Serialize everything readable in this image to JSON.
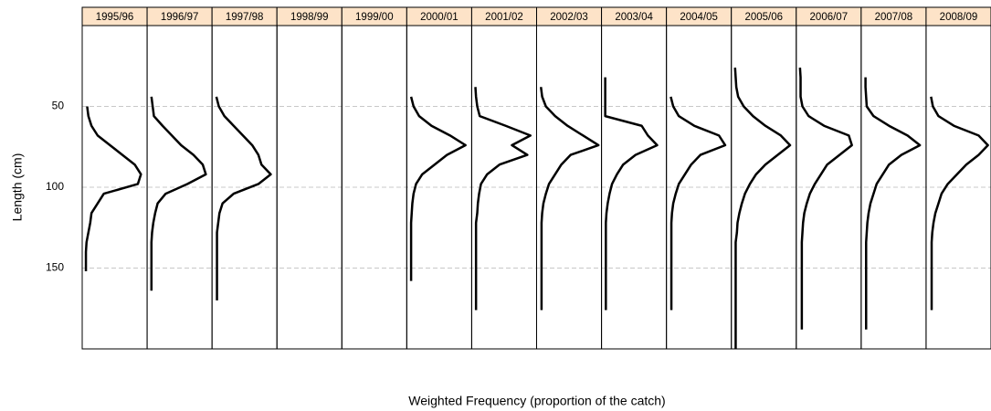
{
  "chart_data": {
    "type": "line",
    "ylabel": "Length (cm)",
    "xlabel": "Weighted Frequency (proportion of the catch)",
    "ylim": [
      0,
      200
    ],
    "y_inverted": true,
    "yticks": [
      50,
      100,
      150
    ],
    "grid": true,
    "xlim": [
      -0.005,
      0.1
    ],
    "color": "#000000",
    "strip_color": "#fde3c8",
    "lengths": [
      26,
      32,
      38,
      44,
      50,
      56,
      62,
      68,
      74,
      80,
      86,
      92,
      98,
      104,
      110,
      116,
      122,
      128,
      134,
      140,
      146,
      152,
      158,
      164,
      170,
      176,
      182,
      188,
      194,
      200
    ],
    "panels": [
      {
        "name": "1995/96",
        "values": [
          null,
          null,
          null,
          null,
          0.003,
          0.005,
          0.01,
          0.02,
          0.04,
          0.06,
          0.08,
          0.09,
          0.085,
          0.03,
          0.02,
          0.01,
          0.008,
          0.005,
          0.002,
          0.001,
          0.001,
          0.001,
          null,
          null,
          null,
          null,
          null,
          null,
          null,
          null
        ]
      },
      {
        "name": "1996/97",
        "values": [
          null,
          null,
          null,
          0.002,
          0.004,
          0.006,
          0.02,
          0.035,
          0.05,
          0.07,
          0.085,
          0.09,
          0.06,
          0.025,
          0.012,
          0.008,
          0.005,
          0.003,
          0.002,
          0.002,
          0.002,
          0.002,
          0.002,
          0.002,
          null,
          null,
          null,
          null,
          null,
          null
        ]
      },
      {
        "name": "1997/98",
        "values": [
          null,
          null,
          null,
          0.002,
          0.006,
          0.015,
          0.03,
          0.045,
          0.06,
          0.07,
          0.075,
          0.09,
          0.07,
          0.03,
          0.012,
          0.007,
          0.005,
          0.003,
          0.003,
          0.003,
          0.003,
          0.003,
          0.003,
          0.003,
          0.003,
          null,
          null,
          null,
          null,
          null
        ]
      },
      {
        "name": "1998/99",
        "values": [
          null,
          null,
          null,
          null,
          null,
          null,
          null,
          null,
          null,
          null,
          null,
          null,
          null,
          null,
          null,
          null,
          null,
          null,
          null,
          null,
          null,
          null,
          null,
          null,
          null,
          null,
          null,
          null,
          null,
          null
        ]
      },
      {
        "name": "1999/00",
        "values": [
          null,
          null,
          null,
          null,
          null,
          null,
          null,
          null,
          null,
          null,
          null,
          null,
          null,
          null,
          null,
          null,
          null,
          null,
          null,
          null,
          null,
          null,
          null,
          null,
          null,
          null,
          null,
          null,
          null,
          null
        ]
      },
      {
        "name": "2000/01",
        "values": [
          null,
          null,
          null,
          0.002,
          0.006,
          0.015,
          0.035,
          0.065,
          0.09,
          0.06,
          0.04,
          0.02,
          0.01,
          0.006,
          0.004,
          0.003,
          0.002,
          0.002,
          0.002,
          0.002,
          0.002,
          0.002,
          0.002,
          null,
          null,
          null,
          null,
          null,
          null,
          null
        ]
      },
      {
        "name": "2001/02",
        "values": [
          null,
          null,
          0.001,
          0.002,
          0.004,
          0.008,
          0.05,
          0.09,
          0.06,
          0.085,
          0.04,
          0.02,
          0.01,
          0.007,
          0.005,
          0.004,
          0.002,
          0.002,
          0.002,
          0.002,
          0.002,
          0.002,
          0.002,
          0.002,
          0.002,
          0.002,
          null,
          null,
          null,
          null
        ]
      },
      {
        "name": "2002/03",
        "values": [
          null,
          null,
          0.002,
          0.004,
          0.01,
          0.025,
          0.045,
          0.07,
          0.095,
          0.05,
          0.035,
          0.025,
          0.015,
          0.01,
          0.006,
          0.004,
          0.003,
          0.003,
          0.003,
          0.003,
          0.003,
          0.003,
          0.003,
          0.003,
          0.003,
          0.003,
          null,
          null,
          null,
          null
        ]
      },
      {
        "name": "2003/04",
        "values": [
          null,
          0.001,
          0.001,
          0.001,
          0.001,
          0.001,
          0.06,
          0.07,
          0.085,
          0.05,
          0.03,
          0.02,
          0.012,
          0.008,
          0.005,
          0.003,
          0.002,
          0.002,
          0.002,
          0.002,
          0.002,
          0.002,
          0.002,
          0.002,
          0.002,
          0.002,
          null,
          null,
          null,
          null
        ]
      },
      {
        "name": "2004/05",
        "values": [
          null,
          null,
          null,
          0.002,
          0.006,
          0.015,
          0.04,
          0.08,
          0.09,
          0.05,
          0.035,
          0.025,
          0.015,
          0.01,
          0.006,
          0.004,
          0.003,
          0.003,
          0.003,
          0.003,
          0.003,
          0.003,
          0.003,
          0.003,
          0.003,
          0.003,
          null,
          null,
          null,
          null
        ]
      },
      {
        "name": "2005/06",
        "values": [
          0.001,
          0.002,
          0.003,
          0.006,
          0.015,
          0.03,
          0.05,
          0.075,
          0.09,
          0.07,
          0.05,
          0.035,
          0.025,
          0.017,
          0.012,
          0.008,
          0.005,
          0.004,
          0.002,
          0.002,
          0.002,
          0.002,
          0.002,
          0.002,
          0.002,
          0.002,
          0.002,
          0.002,
          0.002,
          0.002
        ]
      },
      {
        "name": "2006/07",
        "values": [
          0.001,
          0.002,
          0.002,
          0.002,
          0.005,
          0.015,
          0.04,
          0.08,
          0.085,
          0.065,
          0.045,
          0.035,
          0.025,
          0.017,
          0.012,
          0.008,
          0.006,
          0.005,
          0.004,
          0.004,
          0.004,
          0.004,
          0.004,
          0.004,
          0.004,
          0.004,
          0.004,
          0.004,
          null,
          null
        ]
      },
      {
        "name": "2007/08",
        "values": [
          null,
          0.002,
          0.002,
          0.003,
          0.004,
          0.015,
          0.04,
          0.07,
          0.09,
          0.06,
          0.04,
          0.03,
          0.02,
          0.015,
          0.01,
          0.007,
          0.005,
          0.004,
          0.003,
          0.003,
          0.003,
          0.003,
          0.003,
          0.003,
          0.003,
          0.003,
          0.003,
          0.003,
          null,
          null
        ]
      },
      {
        "name": "2008/09",
        "values": [
          null,
          null,
          null,
          0.003,
          0.006,
          0.015,
          0.04,
          0.08,
          0.095,
          0.08,
          0.06,
          0.045,
          0.03,
          0.02,
          0.015,
          0.01,
          0.007,
          0.005,
          0.004,
          0.004,
          0.004,
          0.004,
          0.004,
          0.004,
          0.004,
          0.004,
          null,
          null,
          null,
          null
        ]
      }
    ]
  }
}
